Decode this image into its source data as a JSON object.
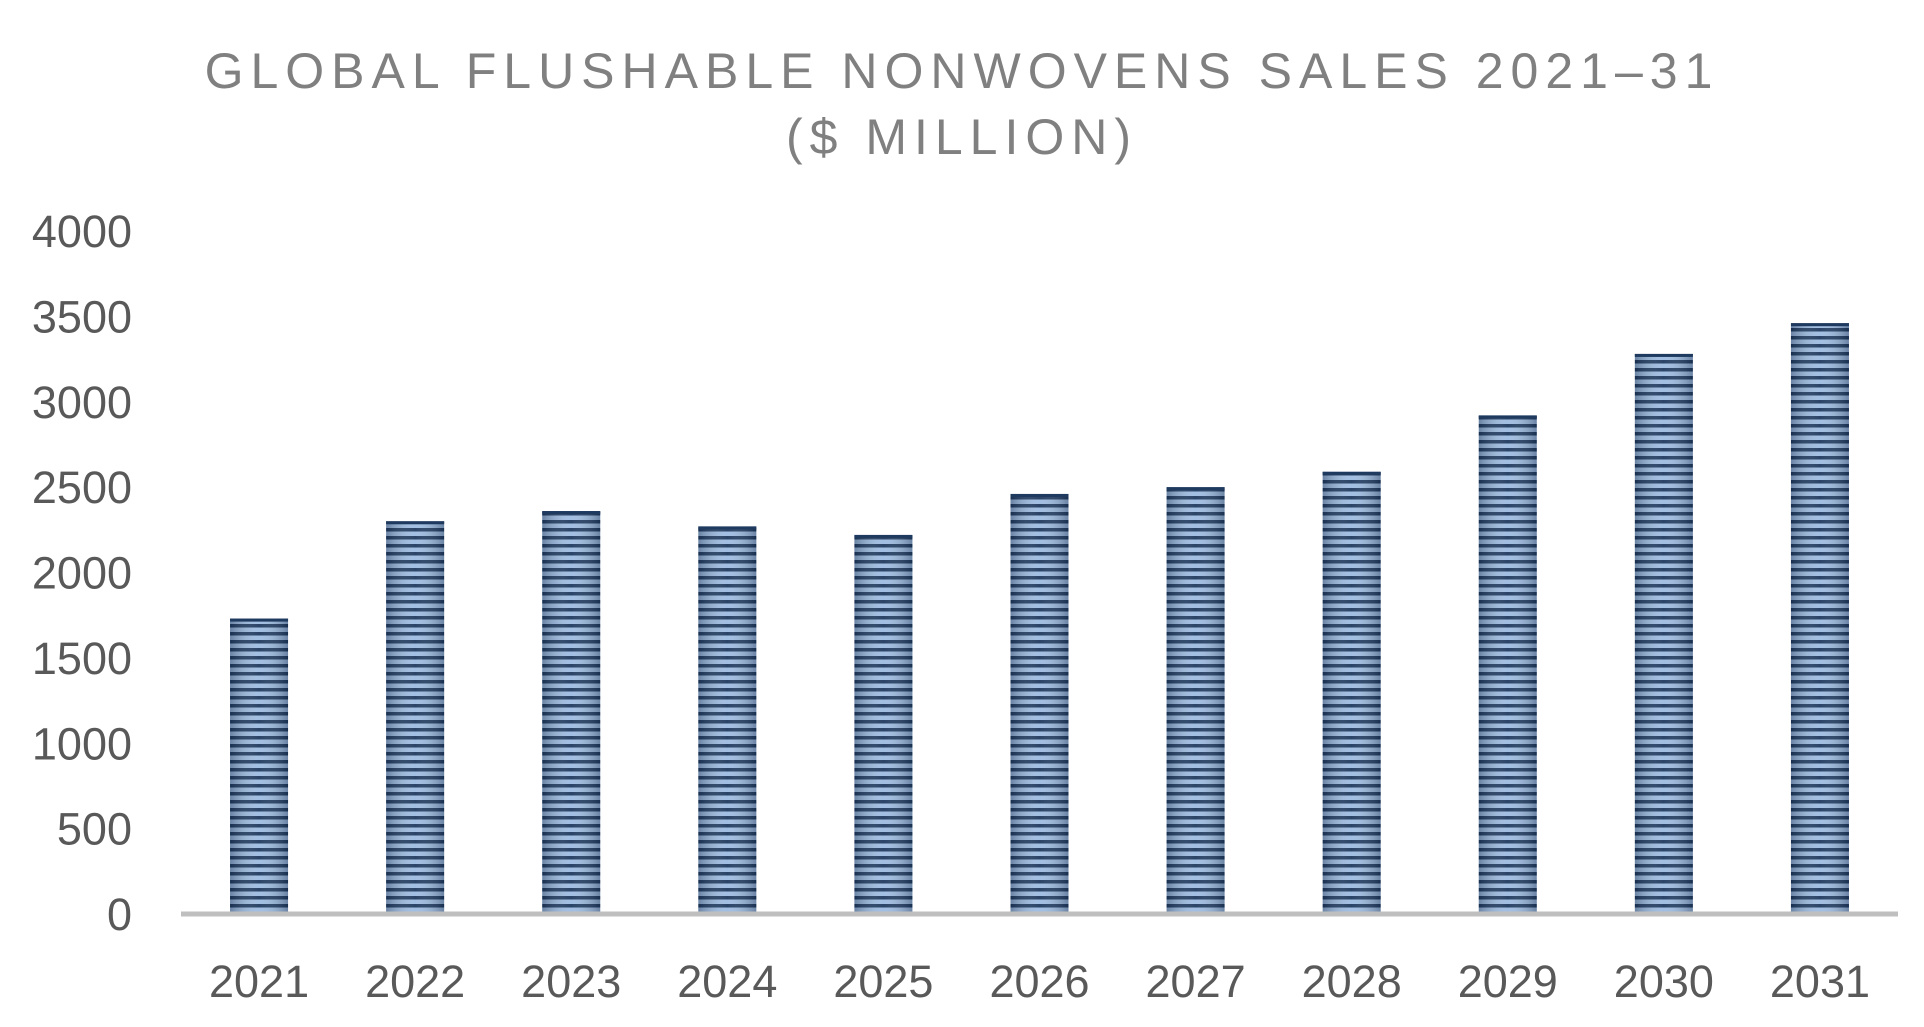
{
  "chart_data": {
    "type": "bar",
    "title_lines": [
      "GLOBAL FLUSHABLE NONWOVENS SALES 2021–31",
      "($ MILLION)"
    ],
    "xlabel": "",
    "ylabel": "",
    "categories": [
      "2021",
      "2022",
      "2023",
      "2024",
      "2025",
      "2026",
      "2027",
      "2028",
      "2029",
      "2030",
      "2031"
    ],
    "values": [
      1730,
      2300,
      2360,
      2270,
      2220,
      2460,
      2500,
      2590,
      2920,
      3280,
      3460
    ],
    "ylim": [
      0,
      4000
    ],
    "yticks": [
      "0",
      "500",
      "1000",
      "1500",
      "2000",
      "2500",
      "3000",
      "3500",
      "4000"
    ],
    "grid": false,
    "legend": "none",
    "colors": {
      "bar_dark": "#1f3a5f",
      "bar_light": "#9dbbe0",
      "axis": "#bfbfbf",
      "text": "#595959",
      "title": "#808080"
    }
  }
}
